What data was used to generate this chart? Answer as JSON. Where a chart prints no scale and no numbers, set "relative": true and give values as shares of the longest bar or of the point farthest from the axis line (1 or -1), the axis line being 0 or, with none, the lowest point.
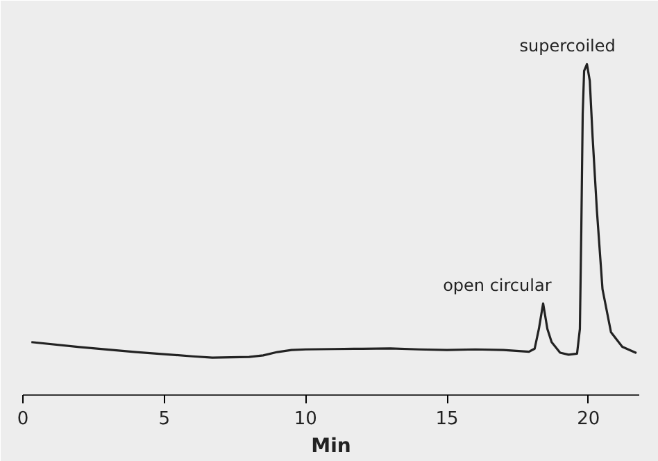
{
  "chart_data": {
    "type": "line",
    "relative": true,
    "xlabel": "Min",
    "x": [
      0.3,
      2,
      4,
      6,
      6.7,
      8,
      8.5,
      9,
      9.5,
      10,
      11,
      12,
      13,
      14,
      15,
      16,
      17,
      17.9,
      18.1,
      18.25,
      18.4,
      18.55,
      18.7,
      19,
      19.3,
      19.6,
      19.7,
      19.75,
      19.8,
      19.85,
      19.95,
      20.05,
      20.15,
      20.3,
      20.5,
      20.8,
      21.2,
      21.7
    ],
    "series": [
      {
        "color": "#222222",
        "values": [
          0.16,
          0.145,
          0.13,
          0.117,
          0.113,
          0.115,
          0.12,
          0.13,
          0.136,
          0.138,
          0.139,
          0.14,
          0.141,
          0.138,
          0.136,
          0.138,
          0.136,
          0.131,
          0.14,
          0.2,
          0.277,
          0.2,
          0.16,
          0.128,
          0.122,
          0.125,
          0.2,
          0.5,
          0.85,
          0.98,
          1.0,
          0.95,
          0.78,
          0.56,
          0.32,
          0.19,
          0.146,
          0.127
        ]
      }
    ],
    "xlim": [
      0,
      21.8
    ],
    "xticks": [
      0,
      5,
      10,
      15,
      20
    ],
    "grid": false,
    "marker": "none",
    "line_style": "solid",
    "annotations": [
      {
        "text": "open circular",
        "x": 18.4,
        "y": 0.277
      },
      {
        "text": "supercoiled",
        "x": 19.95,
        "y": 1.0
      }
    ]
  }
}
